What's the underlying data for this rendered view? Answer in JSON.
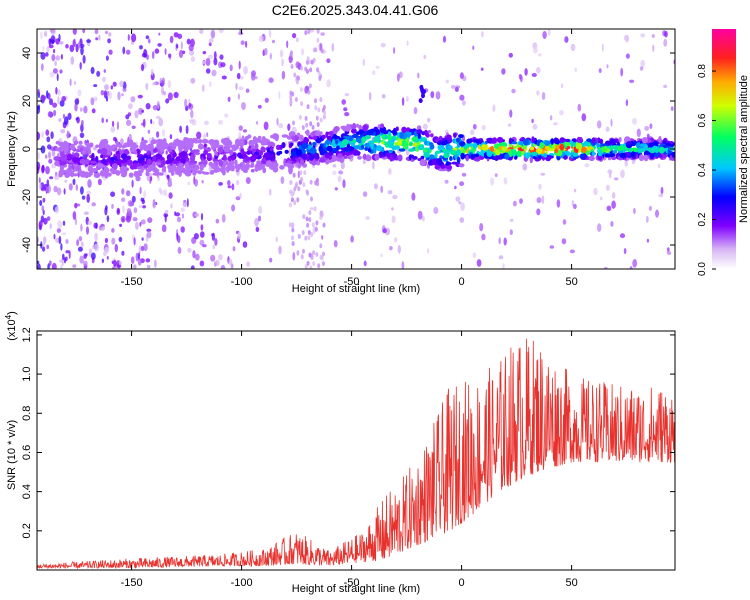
{
  "title": "C2E6.2025.343.04.41.G06",
  "chart_data": [
    {
      "type": "heatmap",
      "xlabel": "Height of straight line (km)",
      "ylabel": "Frequency (Hz)",
      "xlim": [
        -193,
        97
      ],
      "ylim": [
        -50,
        50
      ],
      "xticks": [
        -150,
        -100,
        -50,
        0,
        50
      ],
      "yticks": [
        -40,
        -20,
        0,
        20,
        40
      ],
      "colorbar": {
        "label": "Normalized spectral amplitude",
        "range": [
          0.0,
          0.97
        ],
        "ticks": [
          0.0,
          0.2,
          0.4,
          0.6,
          0.8
        ]
      },
      "ridge": {
        "description_points_x_km": [
          -185,
          -150,
          -110,
          -90,
          -70,
          -50,
          -35,
          -20,
          -10,
          0,
          20,
          50,
          70,
          97
        ],
        "frequency_hz": [
          -4,
          -4,
          -3,
          -2,
          0,
          3,
          3,
          2,
          -2,
          0,
          0,
          0,
          0,
          0
        ],
        "amplitude": [
          0.2,
          0.25,
          0.2,
          0.25,
          0.4,
          0.5,
          0.65,
          0.7,
          0.55,
          0.75,
          0.95,
          0.95,
          0.6,
          0.55
        ]
      },
      "isolated_feature": {
        "x_km": -18,
        "frequency_hz": 23,
        "amplitude": 0.25
      }
    },
    {
      "type": "line",
      "series_name": "SNR",
      "color": "#e8322e",
      "xlabel": "Height of straight line (km)",
      "ylabel": "SNR (10 * v/v)",
      "ylabel_multiplier": "(x10^4)",
      "xlim": [
        -193,
        97
      ],
      "ylim": [
        0,
        1.22
      ],
      "xticks": [
        -150,
        -100,
        -50,
        0,
        50
      ],
      "yticks": [
        0.2,
        0.4,
        0.6,
        0.8,
        1.0,
        1.2
      ],
      "envelope": {
        "x": [
          -193,
          -150,
          -110,
          -90,
          -75,
          -60,
          -45,
          -35,
          -25,
          -15,
          -5,
          5,
          15,
          25,
          35,
          50,
          70,
          97
        ],
        "lower": [
          0.01,
          0.01,
          0.02,
          0.02,
          0.03,
          0.02,
          0.04,
          0.05,
          0.1,
          0.15,
          0.2,
          0.28,
          0.38,
          0.45,
          0.5,
          0.55,
          0.55,
          0.55
        ],
        "upper": [
          0.03,
          0.06,
          0.08,
          0.11,
          0.2,
          0.1,
          0.2,
          0.38,
          0.5,
          0.7,
          0.95,
          1.0,
          1.05,
          1.2,
          1.2,
          1.0,
          0.95,
          0.95
        ]
      }
    }
  ]
}
